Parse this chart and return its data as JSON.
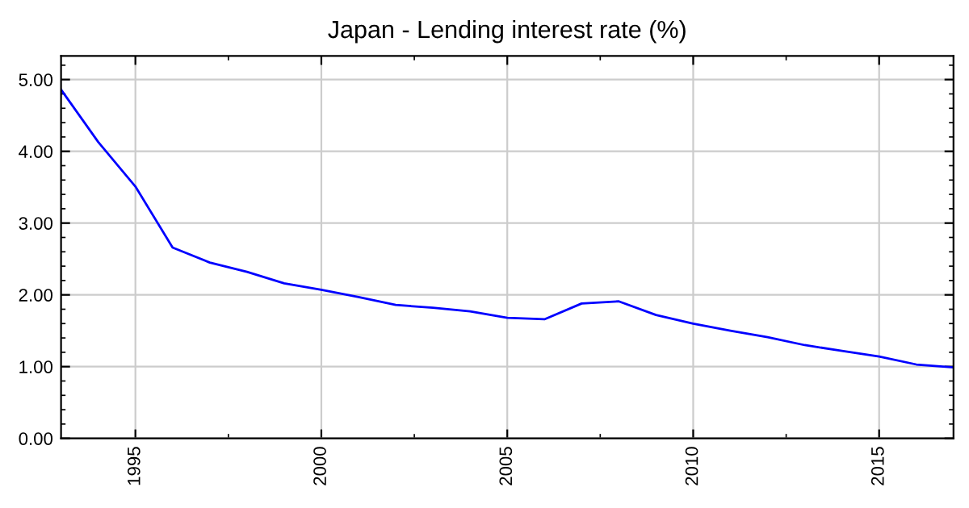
{
  "chart_data": {
    "type": "line",
    "title": "Japan - Lending interest rate (%)",
    "x": [
      1993,
      1994,
      1995,
      1996,
      1997,
      1998,
      1999,
      2000,
      2001,
      2002,
      2003,
      2004,
      2005,
      2006,
      2007,
      2008,
      2009,
      2010,
      2011,
      2012,
      2013,
      2014,
      2015,
      2016,
      2017
    ],
    "series": [
      {
        "color": "#0000ff",
        "values": [
          4.86,
          4.13,
          3.51,
          2.66,
          2.45,
          2.32,
          2.16,
          2.07,
          1.97,
          1.86,
          1.82,
          1.77,
          1.68,
          1.66,
          1.88,
          1.91,
          1.72,
          1.6,
          1.5,
          1.41,
          1.3,
          1.22,
          1.14,
          1.03,
          0.99
        ]
      }
    ],
    "xlim": [
      1993,
      2017
    ],
    "ylim": [
      0,
      5.33
    ],
    "xticks": [
      1995,
      2000,
      2005,
      2010,
      2015
    ],
    "yticks": [
      {
        "value": 0,
        "label": "0.00"
      },
      {
        "value": 1,
        "label": "1.00"
      },
      {
        "value": 2,
        "label": "2.00"
      },
      {
        "value": 3,
        "label": "3.00"
      },
      {
        "value": 4,
        "label": "4.00"
      },
      {
        "value": 5,
        "label": "5.00"
      }
    ],
    "grid": true,
    "marker": "none",
    "line_style": "solid"
  }
}
